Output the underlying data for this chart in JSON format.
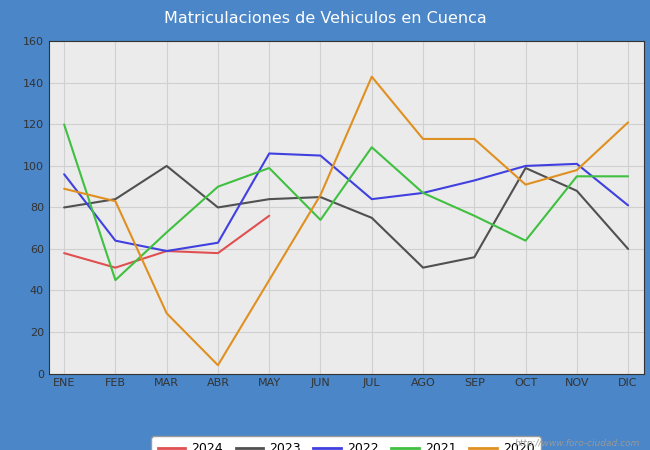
{
  "title": "Matriculaciones de Vehiculos en Cuenca",
  "title_color": "white",
  "title_bg_color": "#4a86c8",
  "months": [
    "ENE",
    "FEB",
    "MAR",
    "ABR",
    "MAY",
    "JUN",
    "JUL",
    "AGO",
    "SEP",
    "OCT",
    "NOV",
    "DIC"
  ],
  "series": {
    "2024": [
      58,
      51,
      59,
      58,
      76,
      null,
      null,
      null,
      null,
      null,
      null,
      null
    ],
    "2023": [
      80,
      84,
      100,
      80,
      84,
      85,
      75,
      51,
      56,
      99,
      88,
      60
    ],
    "2022": [
      96,
      64,
      59,
      63,
      106,
      105,
      84,
      87,
      93,
      100,
      101,
      81
    ],
    "2021": [
      120,
      45,
      68,
      90,
      99,
      74,
      109,
      87,
      76,
      64,
      95,
      95
    ],
    "2020": [
      89,
      83,
      29,
      4,
      null,
      86,
      143,
      113,
      113,
      91,
      98,
      121
    ]
  },
  "colors": {
    "2024": "#e05050",
    "2023": "#505050",
    "2022": "#4040e0",
    "2021": "#40c040",
    "2020": "#e09020"
  },
  "ylim": [
    0,
    160
  ],
  "yticks": [
    0,
    20,
    40,
    60,
    80,
    100,
    120,
    140,
    160
  ],
  "grid_color": "#d0d0d0",
  "plot_bg_color": "#ebebeb",
  "watermark": "http://www.foro-ciudad.com",
  "legend_order": [
    "2024",
    "2023",
    "2022",
    "2021",
    "2020"
  ]
}
